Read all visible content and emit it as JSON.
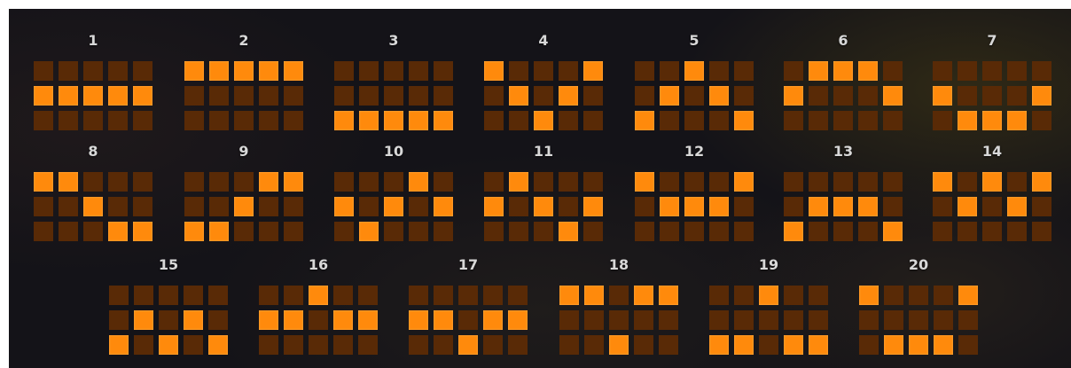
{
  "colors": {
    "cell_active": "#ff8a0c",
    "cell_inactive": "#592a06",
    "number_text": "#d8d8d8",
    "panel_background": "#141318"
  },
  "paylines": [
    {
      "number": "1",
      "rows": [
        [
          0,
          0,
          0,
          0,
          0
        ],
        [
          1,
          1,
          1,
          1,
          1
        ],
        [
          0,
          0,
          0,
          0,
          0
        ]
      ]
    },
    {
      "number": "2",
      "rows": [
        [
          1,
          1,
          1,
          1,
          1
        ],
        [
          0,
          0,
          0,
          0,
          0
        ],
        [
          0,
          0,
          0,
          0,
          0
        ]
      ]
    },
    {
      "number": "3",
      "rows": [
        [
          0,
          0,
          0,
          0,
          0
        ],
        [
          0,
          0,
          0,
          0,
          0
        ],
        [
          1,
          1,
          1,
          1,
          1
        ]
      ]
    },
    {
      "number": "4",
      "rows": [
        [
          1,
          0,
          0,
          0,
          1
        ],
        [
          0,
          1,
          0,
          1,
          0
        ],
        [
          0,
          0,
          1,
          0,
          0
        ]
      ]
    },
    {
      "number": "5",
      "rows": [
        [
          0,
          0,
          1,
          0,
          0
        ],
        [
          0,
          1,
          0,
          1,
          0
        ],
        [
          1,
          0,
          0,
          0,
          1
        ]
      ]
    },
    {
      "number": "6",
      "rows": [
        [
          0,
          1,
          1,
          1,
          0
        ],
        [
          1,
          0,
          0,
          0,
          1
        ],
        [
          0,
          0,
          0,
          0,
          0
        ]
      ]
    },
    {
      "number": "7",
      "rows": [
        [
          0,
          0,
          0,
          0,
          0
        ],
        [
          1,
          0,
          0,
          0,
          1
        ],
        [
          0,
          1,
          1,
          1,
          0
        ]
      ]
    },
    {
      "number": "8",
      "rows": [
        [
          1,
          1,
          0,
          0,
          0
        ],
        [
          0,
          0,
          1,
          0,
          0
        ],
        [
          0,
          0,
          0,
          1,
          1
        ]
      ]
    },
    {
      "number": "9",
      "rows": [
        [
          0,
          0,
          0,
          1,
          1
        ],
        [
          0,
          0,
          1,
          0,
          0
        ],
        [
          1,
          1,
          0,
          0,
          0
        ]
      ]
    },
    {
      "number": "10",
      "rows": [
        [
          0,
          0,
          0,
          1,
          0
        ],
        [
          1,
          0,
          1,
          0,
          1
        ],
        [
          0,
          1,
          0,
          0,
          0
        ]
      ]
    },
    {
      "number": "11",
      "rows": [
        [
          0,
          1,
          0,
          0,
          0
        ],
        [
          1,
          0,
          1,
          0,
          1
        ],
        [
          0,
          0,
          0,
          1,
          0
        ]
      ]
    },
    {
      "number": "12",
      "rows": [
        [
          1,
          0,
          0,
          0,
          1
        ],
        [
          0,
          1,
          1,
          1,
          0
        ],
        [
          0,
          0,
          0,
          0,
          0
        ]
      ]
    },
    {
      "number": "13",
      "rows": [
        [
          0,
          0,
          0,
          0,
          0
        ],
        [
          0,
          1,
          1,
          1,
          0
        ],
        [
          1,
          0,
          0,
          0,
          1
        ]
      ]
    },
    {
      "number": "14",
      "rows": [
        [
          1,
          0,
          1,
          0,
          1
        ],
        [
          0,
          1,
          0,
          1,
          0
        ],
        [
          0,
          0,
          0,
          0,
          0
        ]
      ]
    },
    {
      "number": "15",
      "rows": [
        [
          0,
          0,
          0,
          0,
          0
        ],
        [
          0,
          1,
          0,
          1,
          0
        ],
        [
          1,
          0,
          1,
          0,
          1
        ]
      ]
    },
    {
      "number": "16",
      "rows": [
        [
          0,
          0,
          1,
          0,
          0
        ],
        [
          1,
          1,
          0,
          1,
          1
        ],
        [
          0,
          0,
          0,
          0,
          0
        ]
      ]
    },
    {
      "number": "17",
      "rows": [
        [
          0,
          0,
          0,
          0,
          0
        ],
        [
          1,
          1,
          0,
          1,
          1
        ],
        [
          0,
          0,
          1,
          0,
          0
        ]
      ]
    },
    {
      "number": "18",
      "rows": [
        [
          1,
          1,
          0,
          1,
          1
        ],
        [
          0,
          0,
          0,
          0,
          0
        ],
        [
          0,
          0,
          1,
          0,
          0
        ]
      ]
    },
    {
      "number": "19",
      "rows": [
        [
          0,
          0,
          1,
          0,
          0
        ],
        [
          0,
          0,
          0,
          0,
          0
        ],
        [
          1,
          1,
          0,
          1,
          1
        ]
      ]
    },
    {
      "number": "20",
      "rows": [
        [
          1,
          0,
          0,
          0,
          1
        ],
        [
          0,
          0,
          0,
          0,
          0
        ],
        [
          0,
          1,
          1,
          1,
          0
        ]
      ]
    }
  ]
}
